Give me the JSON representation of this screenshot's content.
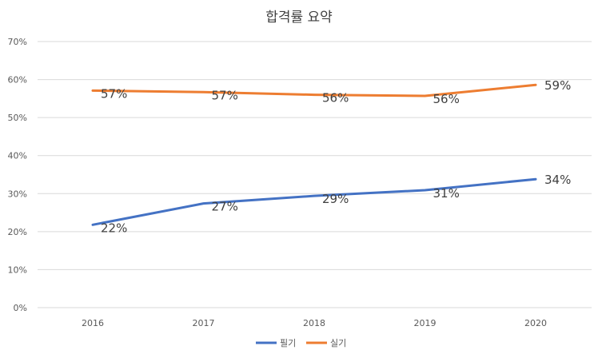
{
  "chart_data": {
    "type": "line",
    "title": "합격률 요약",
    "categories": [
      "2016",
      "2017",
      "2018",
      "2019",
      "2020"
    ],
    "ylim": [
      0,
      70
    ],
    "yticks": [
      0,
      10,
      20,
      30,
      40,
      50,
      60,
      70
    ],
    "ytick_labels": [
      "0%",
      "10%",
      "20%",
      "30%",
      "40%",
      "50%",
      "60%",
      "70%"
    ],
    "grid": true,
    "legend_position": "bottom",
    "series": [
      {
        "name": "필기",
        "color": "#4472c4",
        "values": [
          21.8,
          27.4,
          29.4,
          30.9,
          33.8
        ],
        "labels": [
          "22%",
          "27%",
          "29%",
          "31%",
          "34%"
        ]
      },
      {
        "name": "실기",
        "color": "#ed7d31",
        "values": [
          57.1,
          56.7,
          56.0,
          55.7,
          58.6
        ],
        "labels": [
          "57%",
          "57%",
          "56%",
          "56%",
          "59%"
        ]
      }
    ]
  }
}
